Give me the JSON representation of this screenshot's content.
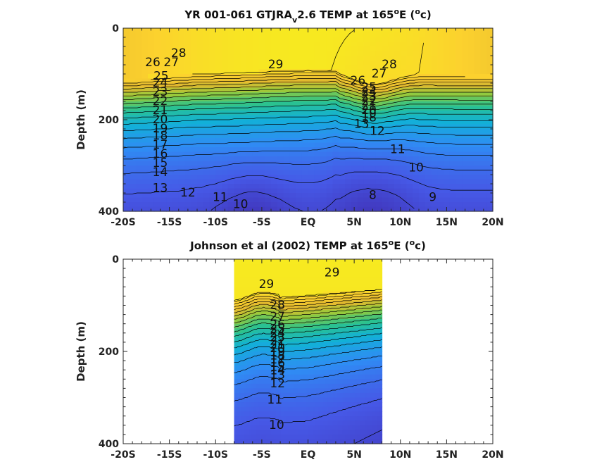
{
  "chart_data": [
    {
      "type": "heatmap",
      "subtype": "filled-contour",
      "title_parts": [
        "YR 001-061 GTJRA",
        "v",
        "2.6 TEMP at 165",
        "o",
        "E (",
        "o",
        "c)"
      ],
      "ylabel": "Depth (m)",
      "x_range": [
        -20,
        20
      ],
      "y_range": [
        0,
        400
      ],
      "y_reversed": true,
      "x_tick_labels": [
        "-20S",
        "-15S",
        "-10S",
        "-5S",
        "EQ",
        "5N",
        "10N",
        "15N",
        "20N"
      ],
      "x_tick_values": [
        -20,
        -15,
        -10,
        -5,
        0,
        5,
        10,
        15,
        20
      ],
      "y_tick_labels": [
        "0",
        "200",
        "400"
      ],
      "y_tick_values": [
        0,
        200,
        400
      ],
      "colormap": [
        "#3e26a8",
        "#4658e6",
        "#2f8cf4",
        "#12b0d8",
        "#2bc28e",
        "#94ca3c",
        "#e3b92f",
        "#fcd12e",
        "#f5f21b"
      ],
      "color_range": [
        7,
        30
      ],
      "contour_labels": [
        {
          "text": "29",
          "x": -3.5,
          "y": 80
        },
        {
          "text": "28",
          "x": -14,
          "y": 55
        },
        {
          "text": "27",
          "x": -14.8,
          "y": 75
        },
        {
          "text": "26",
          "x": -16.8,
          "y": 75
        },
        {
          "text": "25",
          "x": -15.9,
          "y": 105
        },
        {
          "text": "24",
          "x": -16,
          "y": 120
        },
        {
          "text": "23",
          "x": -16,
          "y": 140
        },
        {
          "text": "22",
          "x": -16,
          "y": 160
        },
        {
          "text": "21",
          "x": -16,
          "y": 180
        },
        {
          "text": "20",
          "x": -16,
          "y": 200
        },
        {
          "text": "19",
          "x": -16,
          "y": 220
        },
        {
          "text": "18",
          "x": -16,
          "y": 235
        },
        {
          "text": "17",
          "x": -16,
          "y": 255
        },
        {
          "text": "16",
          "x": -16,
          "y": 275
        },
        {
          "text": "15",
          "x": -16,
          "y": 295
        },
        {
          "text": "14",
          "x": -16,
          "y": 315
        },
        {
          "text": "13",
          "x": -16,
          "y": 350
        },
        {
          "text": "12",
          "x": -13,
          "y": 360
        },
        {
          "text": "11",
          "x": -9.5,
          "y": 370
        },
        {
          "text": "10",
          "x": -7.3,
          "y": 385
        },
        {
          "text": "8",
          "x": 7,
          "y": 365
        },
        {
          "text": "9",
          "x": 13.5,
          "y": 370
        },
        {
          "text": "10",
          "x": 11.7,
          "y": 305
        },
        {
          "text": "11",
          "x": 9.7,
          "y": 265
        },
        {
          "text": "12",
          "x": 7.5,
          "y": 225
        },
        {
          "text": "13",
          "x": 5.8,
          "y": 210
        },
        {
          "text": "26",
          "x": 5.4,
          "y": 115
        },
        {
          "text": "27",
          "x": 7.7,
          "y": 100
        },
        {
          "text": "28",
          "x": 8.8,
          "y": 80
        },
        {
          "text": "25",
          "x": 6.6,
          "y": 130
        },
        {
          "text": "24",
          "x": 6.6,
          "y": 140
        },
        {
          "text": "23",
          "x": 6.6,
          "y": 150
        },
        {
          "text": "22",
          "x": 6.6,
          "y": 160
        },
        {
          "text": "21",
          "x": 6.6,
          "y": 170
        },
        {
          "text": "20",
          "x": 6.6,
          "y": 180
        },
        {
          "text": "19",
          "x": 6.6,
          "y": 188
        },
        {
          "text": "18",
          "x": 6.6,
          "y": 196
        }
      ]
    },
    {
      "type": "heatmap",
      "subtype": "filled-contour",
      "title_parts": [
        "Johnson et al (2002) TEMP at 165",
        "o",
        "E (",
        "o",
        "c)"
      ],
      "ylabel": "Depth (m)",
      "x_range": [
        -20,
        20
      ],
      "y_range": [
        0,
        400
      ],
      "y_reversed": true,
      "data_x_range": [
        -8,
        8
      ],
      "x_tick_labels": [
        "-20S",
        "-15S",
        "-10S",
        "-5S",
        "EQ",
        "5N",
        "10N",
        "15N",
        "20N"
      ],
      "x_tick_values": [
        -20,
        -15,
        -10,
        -5,
        0,
        5,
        10,
        15,
        20
      ],
      "y_tick_labels": [
        "0",
        "200",
        "400"
      ],
      "y_tick_values": [
        0,
        200,
        400
      ],
      "colormap": [
        "#3e26a8",
        "#4658e6",
        "#2f8cf4",
        "#12b0d8",
        "#2bc28e",
        "#94ca3c",
        "#e3b92f",
        "#fcd12e",
        "#f5f21b"
      ],
      "color_range": [
        7,
        30
      ],
      "contour_labels": [
        {
          "text": "29",
          "x": -4.5,
          "y": 55
        },
        {
          "text": "29",
          "x": 2.6,
          "y": 30
        },
        {
          "text": "28",
          "x": -3.3,
          "y": 100
        },
        {
          "text": "27",
          "x": -3.3,
          "y": 125
        },
        {
          "text": "26",
          "x": -3.3,
          "y": 143
        },
        {
          "text": "25",
          "x": -3.3,
          "y": 152
        },
        {
          "text": "24",
          "x": -3.3,
          "y": 161
        },
        {
          "text": "23",
          "x": -3.3,
          "y": 170
        },
        {
          "text": "22",
          "x": -3.3,
          "y": 178
        },
        {
          "text": "21",
          "x": -3.3,
          "y": 186
        },
        {
          "text": "20",
          "x": -3.3,
          "y": 194
        },
        {
          "text": "19",
          "x": -3.3,
          "y": 202
        },
        {
          "text": "18",
          "x": -3.3,
          "y": 210
        },
        {
          "text": "17",
          "x": -3.3,
          "y": 218
        },
        {
          "text": "16",
          "x": -3.3,
          "y": 226
        },
        {
          "text": "15",
          "x": -3.3,
          "y": 234
        },
        {
          "text": "14",
          "x": -3.3,
          "y": 242
        },
        {
          "text": "13",
          "x": -3.3,
          "y": 252
        },
        {
          "text": "12",
          "x": -3.3,
          "y": 270
        },
        {
          "text": "11",
          "x": -3.6,
          "y": 305
        },
        {
          "text": "10",
          "x": -3.4,
          "y": 360
        }
      ]
    }
  ]
}
